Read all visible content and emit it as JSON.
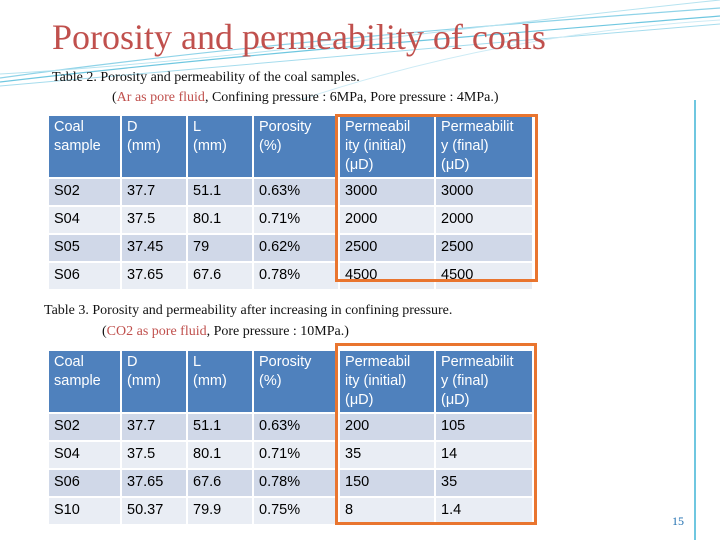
{
  "title": "Porosity and permeability of coals",
  "table2": {
    "caption_line1": "Table 2. Porosity and permeability of the coal samples.",
    "caption_line2_prefix": "(",
    "caption_line2_highlight": "Ar as pore fluid",
    "caption_line2_suffix": ", Confining pressure : 6MPa, Pore pressure : 4MPa.)",
    "headers": [
      "Coal sample",
      "D (mm)",
      "L (mm)",
      "Porosity (%)",
      "Permeability (initial) (μD)",
      "Permeability (final) (μD)"
    ],
    "header_display": [
      [
        "Coal",
        "sample"
      ],
      [
        "D",
        "(mm)"
      ],
      [
        "L",
        "(mm)"
      ],
      [
        "Porosity",
        "(%)"
      ],
      [
        "Permeabil",
        "ity (initial)",
        "(μD)"
      ],
      [
        "Permeabilit",
        "y (final)",
        "(μD)"
      ]
    ],
    "rows": [
      [
        "S02",
        "37.7",
        "51.1",
        "0.63%",
        "3000",
        "3000"
      ],
      [
        "S04",
        "37.5",
        "80.1",
        "0.71%",
        "2000",
        "2000"
      ],
      [
        "S05",
        "37.45",
        "79",
        "0.62%",
        "2500",
        "2500"
      ],
      [
        "S06",
        "37.65",
        "67.6",
        "0.78%",
        "4500",
        "4500"
      ]
    ]
  },
  "table3": {
    "caption_line1": "Table 3. Porosity and permeability after increasing in confining pressure.",
    "caption_line2_prefix": "(",
    "caption_line2_highlight": "CO2 as pore fluid",
    "caption_line2_suffix": ", Pore pressure : 10MPa.)",
    "headers": [
      "Coal sample",
      "D (mm)",
      "L (mm)",
      "Porosity (%)",
      "Permeability (initial) (μD)",
      "Permeability (final) (μD)"
    ],
    "header_display": [
      [
        "Coal",
        "sample"
      ],
      [
        "D",
        "(mm)"
      ],
      [
        "L",
        "(mm)"
      ],
      [
        "Porosity",
        "(%)"
      ],
      [
        "Permeabil",
        "ity (initial)",
        "(μD)"
      ],
      [
        "Permeabilit",
        "y (final)",
        "(μD)"
      ]
    ],
    "rows": [
      [
        "S02",
        "37.7",
        "51.1",
        "0.63%",
        "200",
        "105"
      ],
      [
        "S04",
        "37.5",
        "80.1",
        "0.71%",
        "35",
        "14"
      ],
      [
        "S06",
        "37.65",
        "67.6",
        "0.78%",
        "150",
        "35"
      ],
      [
        "S10",
        "50.37",
        "79.9",
        "0.75%",
        "8",
        "1.4"
      ]
    ]
  },
  "page_number": "15",
  "colors": {
    "title": "#c0504d",
    "header_bg": "#4f81bd",
    "row_odd": "#d0d8e8",
    "row_even": "#e9edf4",
    "highlight_box": "#e9752f",
    "accent_lines": "#6fc7e0"
  }
}
